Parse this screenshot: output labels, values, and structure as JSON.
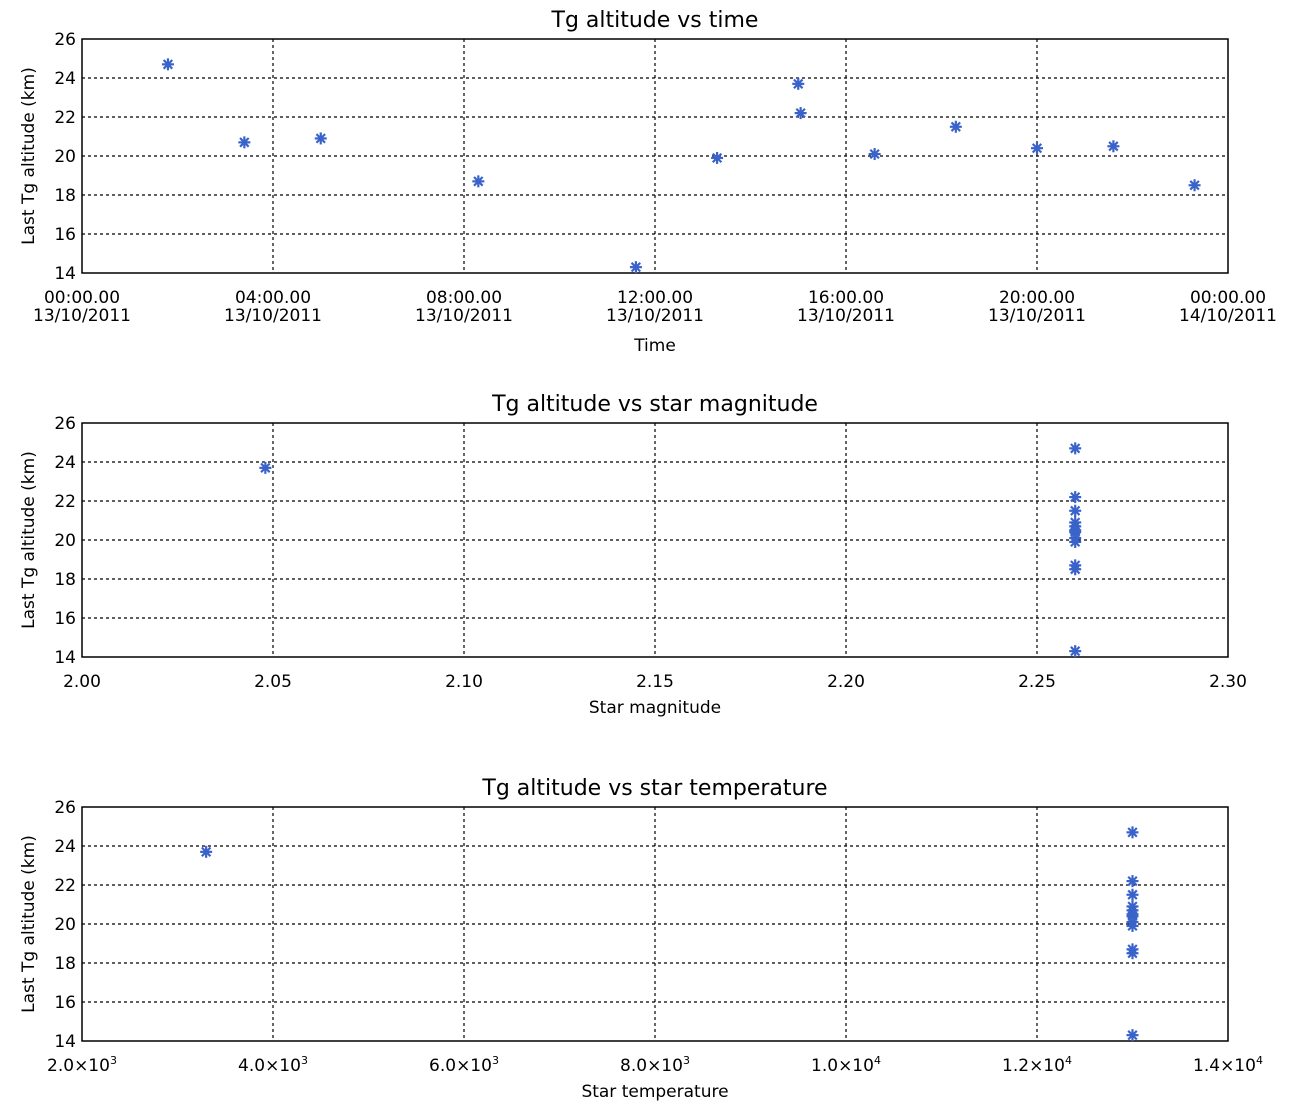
{
  "chart_data": [
    {
      "type": "scatter",
      "title": "Tg altitude vs time",
      "xlabel": "Time",
      "ylabel": "Last Tg altitude (km)",
      "xlim": [
        0,
        24
      ],
      "ylim": [
        14,
        26
      ],
      "grid": true,
      "marker": "asterisk",
      "color": "#3a63c9",
      "xticks": [
        0,
        4,
        8,
        12,
        16,
        20,
        24
      ],
      "xtick_labels": [
        [
          "00:00.00",
          "13/10/2011"
        ],
        [
          "04:00.00",
          "13/10/2011"
        ],
        [
          "08:00.00",
          "13/10/2011"
        ],
        [
          "12:00.00",
          "13/10/2011"
        ],
        [
          "16:00.00",
          "13/10/2011"
        ],
        [
          "20:00.00",
          "13/10/2011"
        ],
        [
          "00:00.00",
          "14/10/2011"
        ]
      ],
      "yticks": [
        14,
        16,
        18,
        20,
        22,
        24,
        26
      ],
      "ytick_labels": [
        "14",
        "16",
        "18",
        "20",
        "22",
        "24",
        "26"
      ],
      "points": [
        {
          "x": 1.8,
          "y": 24.7
        },
        {
          "x": 3.4,
          "y": 20.7
        },
        {
          "x": 5.0,
          "y": 20.9
        },
        {
          "x": 8.3,
          "y": 18.7
        },
        {
          "x": 11.6,
          "y": 14.3
        },
        {
          "x": 13.3,
          "y": 19.9
        },
        {
          "x": 15.0,
          "y": 23.7
        },
        {
          "x": 15.05,
          "y": 22.2
        },
        {
          "x": 16.6,
          "y": 20.1
        },
        {
          "x": 18.3,
          "y": 21.5
        },
        {
          "x": 20.0,
          "y": 20.4
        },
        {
          "x": 21.6,
          "y": 20.5
        },
        {
          "x": 23.3,
          "y": 18.5
        }
      ]
    },
    {
      "type": "scatter",
      "title": "Tg altitude vs star magnitude",
      "xlabel": "Star magnitude",
      "ylabel": "Last Tg altitude (km)",
      "xlim": [
        2.0,
        2.3
      ],
      "ylim": [
        14,
        26
      ],
      "grid": true,
      "marker": "asterisk",
      "color": "#3a63c9",
      "xticks": [
        2.0,
        2.05,
        2.1,
        2.15,
        2.2,
        2.25,
        2.3
      ],
      "xtick_labels": [
        [
          "2.00"
        ],
        [
          "2.05"
        ],
        [
          "2.10"
        ],
        [
          "2.15"
        ],
        [
          "2.20"
        ],
        [
          "2.25"
        ],
        [
          "2.30"
        ]
      ],
      "yticks": [
        14,
        16,
        18,
        20,
        22,
        24,
        26
      ],
      "ytick_labels": [
        "14",
        "16",
        "18",
        "20",
        "22",
        "24",
        "26"
      ],
      "points": [
        {
          "x": 2.048,
          "y": 23.7
        },
        {
          "x": 2.26,
          "y": 24.7
        },
        {
          "x": 2.26,
          "y": 22.2
        },
        {
          "x": 2.26,
          "y": 21.5
        },
        {
          "x": 2.26,
          "y": 20.9
        },
        {
          "x": 2.26,
          "y": 20.7
        },
        {
          "x": 2.26,
          "y": 20.5
        },
        {
          "x": 2.26,
          "y": 20.4
        },
        {
          "x": 2.26,
          "y": 20.1
        },
        {
          "x": 2.26,
          "y": 19.9
        },
        {
          "x": 2.26,
          "y": 18.7
        },
        {
          "x": 2.26,
          "y": 18.5
        },
        {
          "x": 2.26,
          "y": 14.3
        }
      ]
    },
    {
      "type": "scatter",
      "title": "Tg altitude vs star temperature",
      "xlabel": "Star temperature",
      "ylabel": "Last Tg altitude (km)",
      "xlim": [
        2000,
        14000
      ],
      "ylim": [
        14,
        26
      ],
      "grid": true,
      "marker": "asterisk",
      "color": "#3a63c9",
      "xticks": [
        2000,
        4000,
        6000,
        8000,
        10000,
        12000,
        14000
      ],
      "xtick_labels": [
        {
          "mant": "2.0",
          "exp": "3"
        },
        {
          "mant": "4.0",
          "exp": "3"
        },
        {
          "mant": "6.0",
          "exp": "3"
        },
        {
          "mant": "8.0",
          "exp": "3"
        },
        {
          "mant": "1.0",
          "exp": "4"
        },
        {
          "mant": "1.2",
          "exp": "4"
        },
        {
          "mant": "1.4",
          "exp": "4"
        }
      ],
      "yticks": [
        14,
        16,
        18,
        20,
        22,
        24,
        26
      ],
      "ytick_labels": [
        "14",
        "16",
        "18",
        "20",
        "22",
        "24",
        "26"
      ],
      "points": [
        {
          "x": 3300,
          "y": 23.7
        },
        {
          "x": 13000,
          "y": 24.7
        },
        {
          "x": 13000,
          "y": 22.2
        },
        {
          "x": 13000,
          "y": 21.5
        },
        {
          "x": 13000,
          "y": 20.9
        },
        {
          "x": 13000,
          "y": 20.7
        },
        {
          "x": 13000,
          "y": 20.5
        },
        {
          "x": 13000,
          "y": 20.4
        },
        {
          "x": 13000,
          "y": 20.1
        },
        {
          "x": 13000,
          "y": 19.9
        },
        {
          "x": 13000,
          "y": 18.7
        },
        {
          "x": 13000,
          "y": 18.5
        },
        {
          "x": 13000,
          "y": 14.3
        }
      ]
    }
  ]
}
